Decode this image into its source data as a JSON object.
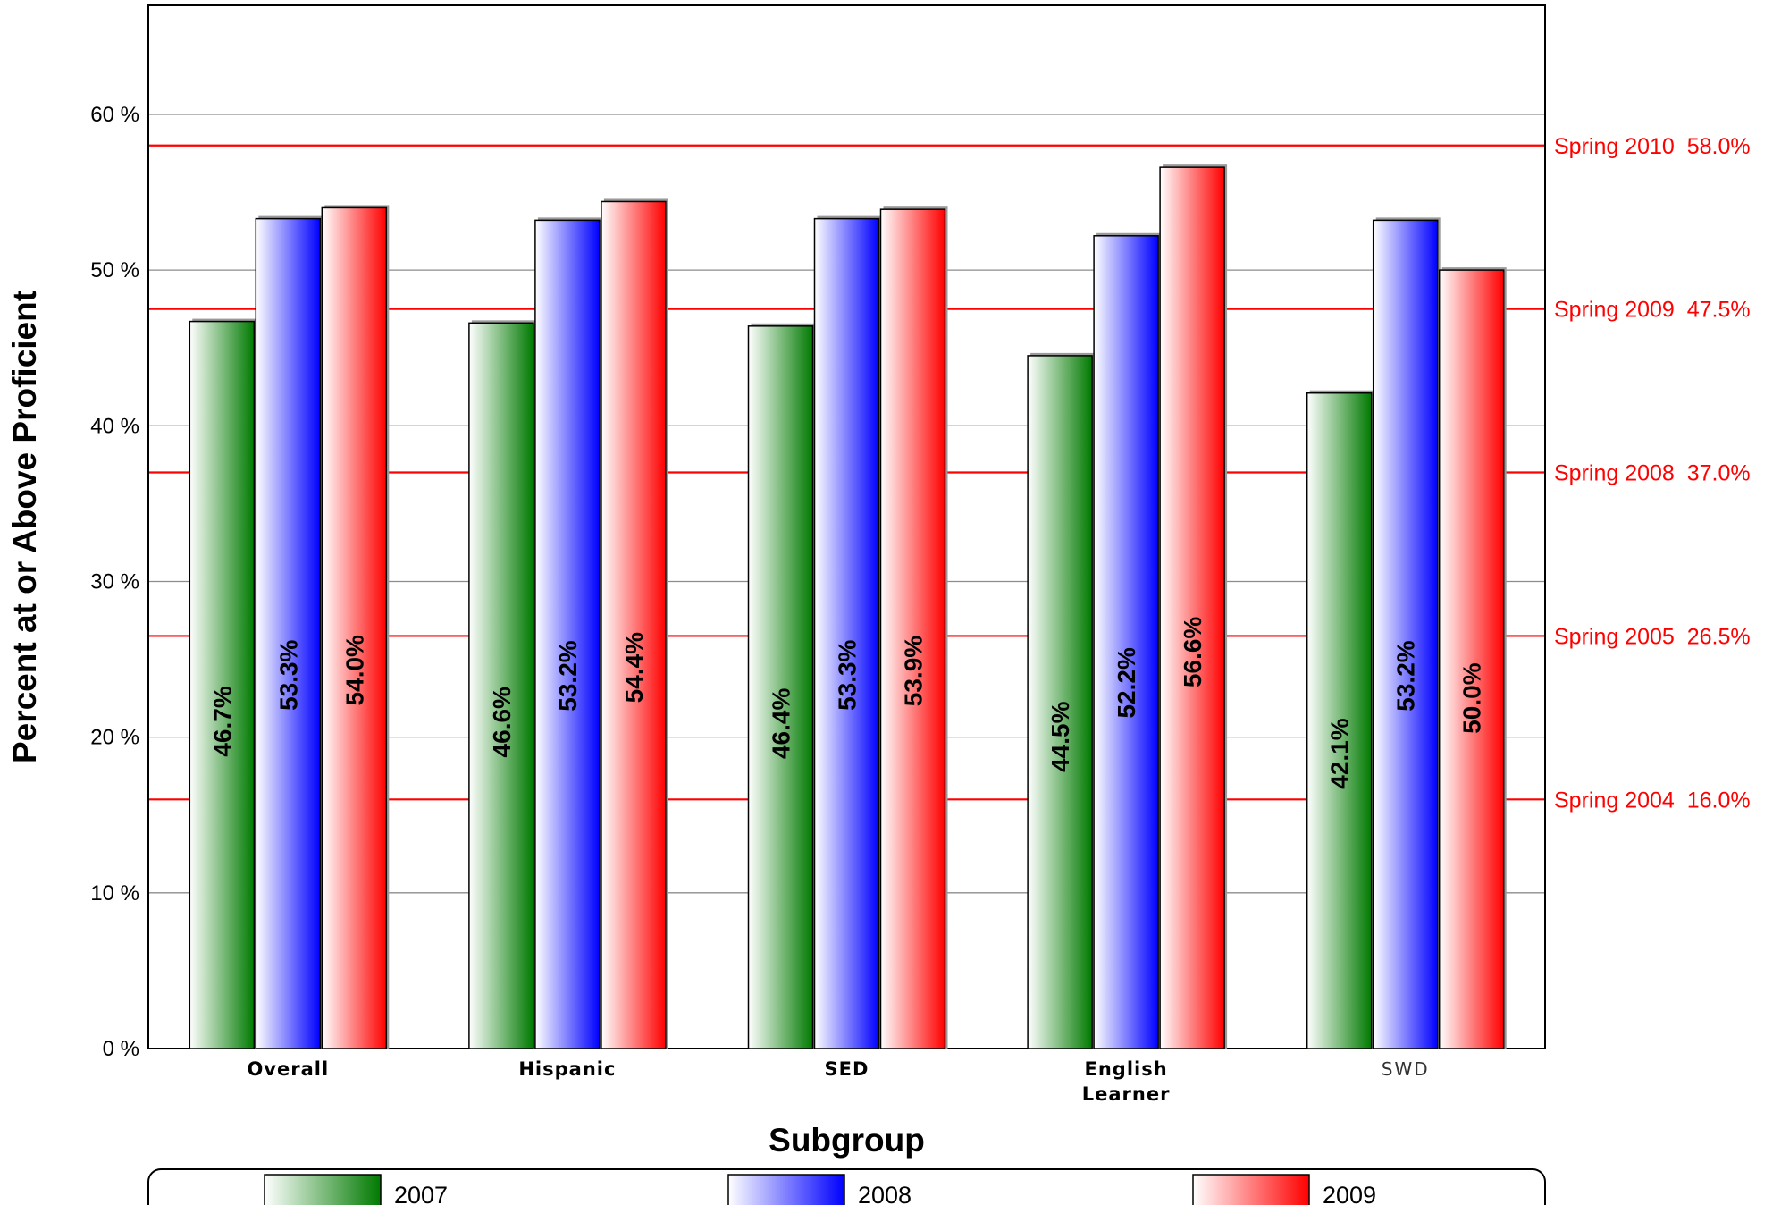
{
  "chart_data": {
    "type": "bar",
    "xlabel": "Subgroup",
    "ylabel": "Percent at or Above Proficient",
    "ylim": [
      0,
      67
    ],
    "y_ticks": [
      {
        "value": 0,
        "label": "0 %"
      },
      {
        "value": 10,
        "label": "10 %"
      },
      {
        "value": 20,
        "label": "20 %"
      },
      {
        "value": 30,
        "label": "30 %"
      },
      {
        "value": 40,
        "label": "40 %"
      },
      {
        "value": 50,
        "label": "50 %"
      },
      {
        "value": 60,
        "label": "60 %"
      }
    ],
    "categories": [
      {
        "lines": [
          "Overall"
        ],
        "style": "bold"
      },
      {
        "lines": [
          "Hispanic"
        ],
        "style": "bold"
      },
      {
        "lines": [
          "SED"
        ],
        "style": "bold"
      },
      {
        "lines": [
          "English",
          "Learner"
        ],
        "style": "bold"
      },
      {
        "lines": [
          "SWD"
        ],
        "style": "light"
      }
    ],
    "series": [
      {
        "name": "2007",
        "color": "#007a00",
        "values": [
          46.7,
          46.6,
          46.4,
          44.5,
          42.1
        ],
        "labels": [
          "46.7%",
          "46.6%",
          "46.4%",
          "44.5%",
          "42.1%"
        ]
      },
      {
        "name": "2008",
        "color": "#0000ff",
        "values": [
          53.3,
          53.2,
          53.3,
          52.2,
          53.2
        ],
        "labels": [
          "53.3%",
          "53.2%",
          "53.3%",
          "52.2%",
          "53.2%"
        ]
      },
      {
        "name": "2009",
        "color": "#ff0000",
        "values": [
          54.0,
          54.4,
          53.9,
          56.6,
          50.0
        ],
        "labels": [
          "54.0%",
          "54.4%",
          "53.9%",
          "56.6%",
          "50.0%"
        ]
      }
    ],
    "target_lines": [
      {
        "value": 58.0,
        "label": "Spring 2010  58.0%"
      },
      {
        "value": 47.5,
        "label": "Spring 2009  47.5%"
      },
      {
        "value": 37.0,
        "label": "Spring 2008  37.0%"
      },
      {
        "value": 26.5,
        "label": "Spring 2005  26.5%"
      },
      {
        "value": 16.0,
        "label": "Spring 2004  16.0%"
      }
    ],
    "target_color": "#ff0000",
    "grid": true,
    "legend_position": "bottom"
  }
}
